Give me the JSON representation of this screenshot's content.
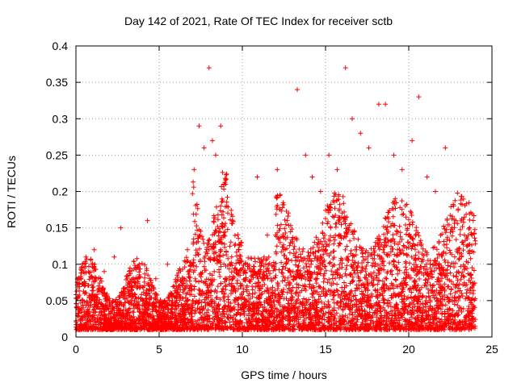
{
  "chart_data": {
    "type": "scatter",
    "title": "Day 142 of 2021, Rate Of TEC Index for receiver sctb",
    "xlabel": "GPS time / hours",
    "ylabel": "ROTI / TECUs",
    "xlim": [
      0,
      25
    ],
    "ylim": [
      0,
      0.4
    ],
    "xticks": [
      "0",
      "5",
      "10",
      "15",
      "20",
      "25"
    ],
    "yticks": [
      "0",
      "0.05",
      "0.1",
      "0.15",
      "0.2",
      "0.25",
      "0.3",
      "0.35",
      "0.4"
    ],
    "grid": true,
    "marker": "+",
    "color": "#ff0000",
    "series": [
      {
        "x": [
          0.2,
          0.6,
          1.1,
          1.7,
          2.3,
          2.7,
          3.2,
          3.8,
          4.3,
          4.8,
          5.5,
          6.2,
          6.7,
          7.1,
          7.4,
          7.7,
          8.0,
          8.2,
          8.4,
          8.7,
          9.0,
          9.4,
          9.8,
          10.3,
          10.9,
          11.5,
          12.1,
          12.7,
          13.3,
          13.8,
          14.2,
          14.7,
          15.2,
          15.7,
          16.2,
          16.6,
          17.1,
          17.6,
          18.2,
          18.6,
          19.1,
          19.6,
          20.2,
          20.6,
          21.1,
          21.6,
          22.2,
          22.7,
          23.2,
          23.8
        ],
        "y": [
          0.08,
          0.11,
          0.12,
          0.09,
          0.11,
          0.15,
          0.09,
          0.1,
          0.16,
          0.08,
          0.1,
          0.07,
          0.12,
          0.23,
          0.29,
          0.26,
          0.37,
          0.27,
          0.25,
          0.29,
          0.21,
          0.16,
          0.12,
          0.1,
          0.22,
          0.14,
          0.23,
          0.16,
          0.34,
          0.25,
          0.22,
          0.2,
          0.25,
          0.23,
          0.37,
          0.3,
          0.28,
          0.26,
          0.32,
          0.32,
          0.25,
          0.23,
          0.27,
          0.33,
          0.22,
          0.2,
          0.26,
          0.18,
          0.13,
          0.14
        ]
      }
    ]
  }
}
